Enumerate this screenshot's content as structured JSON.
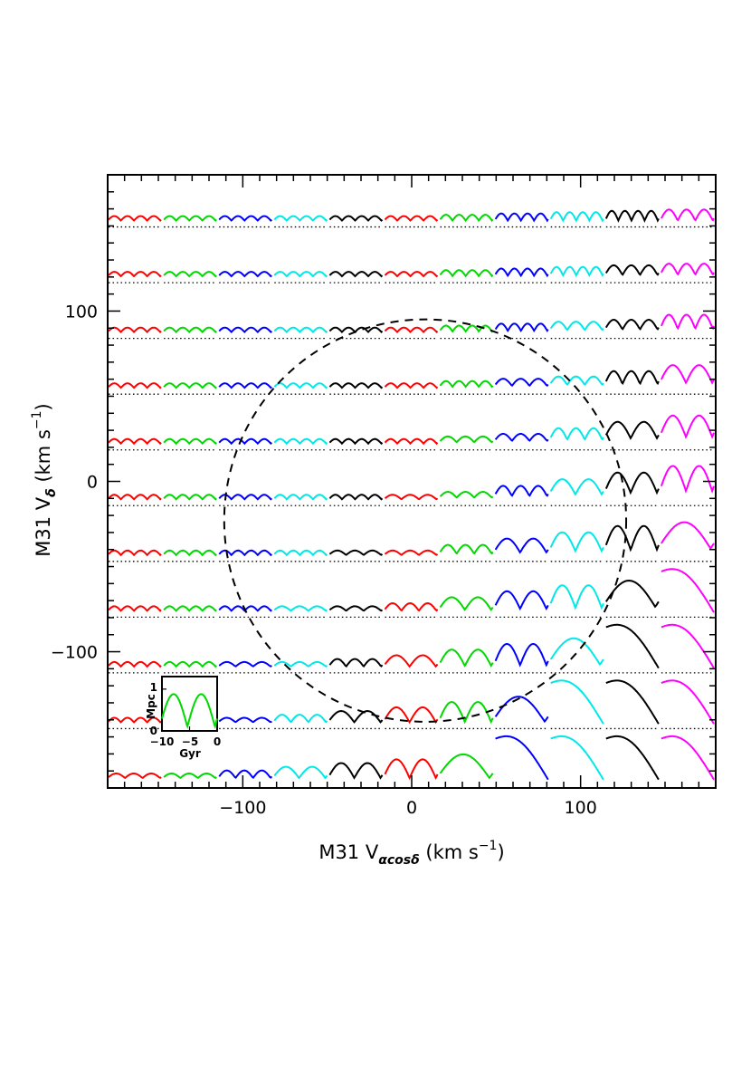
{
  "chart_data": {
    "type": "line",
    "title": "",
    "xlabel": {
      "main": "M31 V",
      "sub": "αcosδ",
      "unit": " (km s",
      "exp": "−1",
      "close": ")"
    },
    "ylabel": {
      "main": "M31 V",
      "sub": "δ",
      "unit": " (km s",
      "exp": "−1",
      "close": ")"
    },
    "xlim": [
      -180,
      180
    ],
    "ylim": [
      -180,
      180
    ],
    "x_ticks": [
      -100,
      0,
      100
    ],
    "x_tick_labels": [
      "−100",
      "0",
      "100"
    ],
    "y_ticks": [
      -100,
      0,
      100
    ],
    "y_tick_labels": [
      "−100",
      "0",
      "100"
    ],
    "grid": false,
    "circle": {
      "center": [
        8,
        -23
      ],
      "radius": 119,
      "style": "dashed"
    },
    "grid_columns": 11,
    "grid_rows": 11,
    "cell_step_kms": 33,
    "column_colors": [
      "#ff0000",
      "#00d800",
      "#0000ff",
      "#00e8e8",
      "#000000",
      "#ff0000",
      "#00d800",
      "#0000ff",
      "#00e8e8",
      "#000000",
      "#ff00ff"
    ],
    "orbit_summary": "Each cell shows a test-particle distance vs. time track (0–1 Mpc over −10 to 0 Gyr) for the given M31 proper-motion velocity; the number of bounces decreases toward large positive V_αcosδ and negative V_δ.",
    "inset": {
      "xlabel": "Gyr",
      "ylabel": "Mpc",
      "x_ticks": [
        -10,
        -5,
        0
      ],
      "x_tick_labels": [
        "−10",
        "−5",
        "0"
      ],
      "y_ticks": [
        0,
        1
      ],
      "y_tick_labels": [
        "0",
        "1"
      ],
      "xlim": [
        -10,
        0
      ],
      "ylim": [
        0,
        1.3
      ],
      "series_color": "#00d800"
    }
  }
}
